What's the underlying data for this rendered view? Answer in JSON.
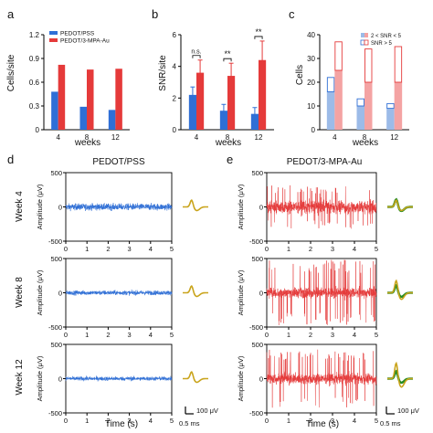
{
  "chart_data": [
    {
      "panel": "a",
      "type": "bar",
      "categories": [
        "4",
        "8",
        "12"
      ],
      "xlabel": "weeks",
      "ylabel": "Cells/site",
      "ylim": [
        0,
        1.2
      ],
      "yticks": [
        "0",
        "0.3",
        "0.6",
        "0.9",
        "1.2"
      ],
      "legend_position": "top-left",
      "series": [
        {
          "name": "PEDOT/PSS",
          "color": "#2f6fd6",
          "values": [
            0.48,
            0.29,
            0.25
          ]
        },
        {
          "name": "PEDOT/3-MPA-Au",
          "color": "#e53a3a",
          "values": [
            0.82,
            0.76,
            0.77
          ]
        }
      ]
    },
    {
      "panel": "b",
      "type": "bar",
      "categories": [
        "4",
        "8",
        "12"
      ],
      "xlabel": "weeks",
      "ylabel": "SNR/site",
      "ylim": [
        0,
        6
      ],
      "yticks": [
        "0",
        "2",
        "4",
        "6"
      ],
      "series": [
        {
          "color": "#2f6fd6",
          "values": [
            2.2,
            1.2,
            1.0
          ],
          "errors": [
            0.5,
            0.4,
            0.4
          ]
        },
        {
          "color": "#e53a3a",
          "values": [
            3.6,
            3.4,
            4.4
          ],
          "errors": [
            0.8,
            0.8,
            1.2
          ]
        }
      ],
      "annotations": [
        "n.s.",
        "**",
        "**"
      ]
    },
    {
      "panel": "c",
      "type": "bar",
      "categories": [
        "4",
        "8",
        "12"
      ],
      "xlabel": "weeks",
      "ylabel": "Cells",
      "ylim": [
        0,
        40
      ],
      "yticks": [
        "0",
        "10",
        "20",
        "30",
        "40"
      ],
      "legend_position": "top-right",
      "legend": [
        "2 < SNR < 5",
        "SNR > 5"
      ],
      "series": [
        {
          "group": "PEDOT/PSS",
          "color": "#2f6fd6",
          "low_snr": [
            16,
            10,
            9
          ],
          "high_snr": [
            6,
            3,
            2
          ]
        },
        {
          "group": "PEDOT/3-MPA-Au",
          "color": "#e53a3a",
          "low_snr": [
            25,
            20,
            20
          ],
          "high_snr": [
            12,
            14,
            15
          ]
        }
      ]
    },
    {
      "panel": "d",
      "type": "line",
      "title": "PEDOT/PSS",
      "xlabel": "Time (s)",
      "ylabel": "Amplitude (μV)",
      "xlim": [
        0,
        5
      ],
      "xticks": [
        "0",
        "1",
        "2",
        "3",
        "4",
        "5"
      ],
      "ylim": [
        -500,
        500
      ],
      "yticks": [
        "500",
        "0",
        "-500"
      ],
      "color": "#2f6fd6",
      "rows": [
        "Week 4",
        "Week 8",
        "Week 12"
      ],
      "noise_amplitude_uv": [
        80,
        55,
        50
      ],
      "spike_amplitude_uv": [
        0,
        0,
        0
      ]
    },
    {
      "panel": "e",
      "type": "line",
      "title": "PEDOT/3-MPA-Au",
      "xlabel": "Time (s)",
      "ylabel": "Amplitude (μV)",
      "xlim": [
        0,
        5
      ],
      "xticks": [
        "0",
        "1",
        "2",
        "3",
        "4",
        "5"
      ],
      "ylim": [
        -500,
        500
      ],
      "yticks": [
        "500",
        "0",
        "-500"
      ],
      "color": "#e53a3a",
      "rows": [
        "Week 4",
        "Week 8",
        "Week 12"
      ],
      "noise_amplitude_uv": [
        160,
        120,
        130
      ],
      "spike_amplitude_uv": [
        320,
        480,
        430
      ]
    }
  ],
  "panel_labels": [
    "a",
    "b",
    "c",
    "d",
    "e"
  ],
  "scale_bar": {
    "voltage": "100 μV",
    "time": "0.5 ms"
  },
  "colors": {
    "blue": "#2f6fd6",
    "red": "#e53a3a",
    "wave_gold": "#c9a41c",
    "wave_green": "#228b22"
  }
}
